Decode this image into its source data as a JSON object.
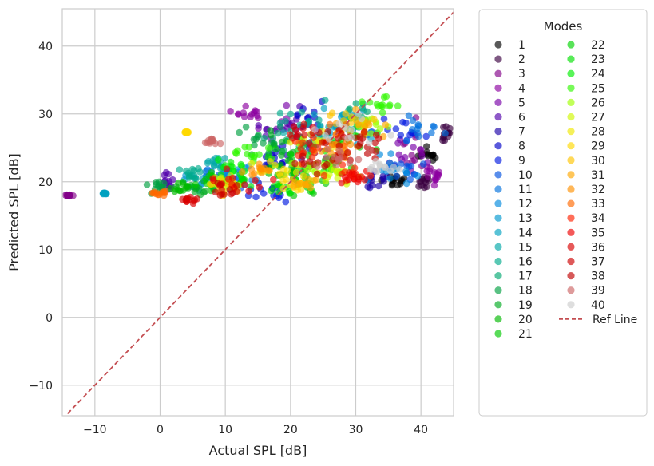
{
  "chart_data": {
    "type": "scatter",
    "title": "",
    "xlabel": "Actual SPL [dB]",
    "ylabel": "Predicted SPL [dB]",
    "xlim": [
      -15,
      45
    ],
    "ylim": [
      -14.5,
      45.5
    ],
    "xticks": [
      "−10",
      "0",
      "10",
      "20",
      "30",
      "40"
    ],
    "xtick_values": [
      -10,
      0,
      10,
      20,
      30,
      40
    ],
    "yticks": [
      "−10",
      "0",
      "10",
      "20",
      "30",
      "40"
    ],
    "ytick_values": [
      -10,
      0,
      10,
      20,
      30,
      40
    ],
    "grid": true,
    "legend": {
      "title": "Modes",
      "placement": "outside-right",
      "columns": 2
    },
    "reference_line": {
      "name": "Ref Line",
      "color": "#c44e52",
      "style": "dashed",
      "points": [
        [
          -15,
          -15
        ],
        [
          45,
          45
        ]
      ]
    },
    "series": [
      {
        "name": "1",
        "color": "#000000",
        "clusters": [
          {
            "cx": 36,
            "cy": 20,
            "sx": 1.8,
            "sy": 0.9
          },
          {
            "cx": 41,
            "cy": 24,
            "sx": 1.2,
            "sy": 1.2
          }
        ]
      },
      {
        "name": "2",
        "color": "#3a0040",
        "clusters": [
          {
            "cx": 44,
            "cy": 27,
            "sx": 0.8,
            "sy": 0.8
          },
          {
            "cx": 40,
            "cy": 20,
            "sx": 1.5,
            "sy": 1
          }
        ]
      },
      {
        "name": "3",
        "color": "#820088",
        "clusters": [
          {
            "cx": 39,
            "cy": 25,
            "sx": 2,
            "sy": 3
          },
          {
            "cx": -14,
            "cy": 18,
            "sx": 0.4,
            "sy": 0.1
          }
        ]
      },
      {
        "name": "4",
        "color": "#8c00a0",
        "clusters": [
          {
            "cx": 42,
            "cy": 21,
            "sx": 1.5,
            "sy": 1
          },
          {
            "cx": 14,
            "cy": 30,
            "sx": 3,
            "sy": 1
          }
        ]
      },
      {
        "name": "5",
        "color": "#7800a8",
        "clusters": [
          {
            "cx": 38,
            "cy": 24,
            "sx": 2.5,
            "sy": 3
          },
          {
            "cx": 20,
            "cy": 28,
            "sx": 4,
            "sy": 2
          }
        ]
      },
      {
        "name": "6",
        "color": "#5200aa",
        "clusters": [
          {
            "cx": 19,
            "cy": 28,
            "sx": 4,
            "sy": 2.5
          },
          {
            "cx": 1,
            "cy": 20,
            "sx": 1,
            "sy": 1
          }
        ]
      },
      {
        "name": "7",
        "color": "#1a00a8",
        "clusters": [
          {
            "cx": 20,
            "cy": 24,
            "sx": 5,
            "sy": 3
          },
          {
            "cx": 33,
            "cy": 20,
            "sx": 2,
            "sy": 1
          }
        ]
      },
      {
        "name": "8",
        "color": "#0000c8",
        "clusters": [
          {
            "cx": 18,
            "cy": 22,
            "sx": 4,
            "sy": 3
          },
          {
            "cx": 22,
            "cy": 29,
            "sx": 3,
            "sy": 2
          }
        ]
      },
      {
        "name": "9",
        "color": "#0018e0",
        "clusters": [
          {
            "cx": 36,
            "cy": 27,
            "sx": 4,
            "sy": 2
          },
          {
            "cx": 16,
            "cy": 18,
            "sx": 3,
            "sy": 1.5
          }
        ]
      },
      {
        "name": "10",
        "color": "#0050e0",
        "clusters": [
          {
            "cx": 38,
            "cy": 22,
            "sx": 3,
            "sy": 1.5
          },
          {
            "cx": 10,
            "cy": 20,
            "sx": 3,
            "sy": 1
          }
        ]
      },
      {
        "name": "11",
        "color": "#0070dd",
        "clusters": [
          {
            "cx": 40,
            "cy": 28,
            "sx": 3,
            "sy": 2
          },
          {
            "cx": 8,
            "cy": 21,
            "sx": 3,
            "sy": 1
          }
        ]
      },
      {
        "name": "12",
        "color": "#0088dd",
        "clusters": [
          {
            "cx": 35,
            "cy": 22,
            "sx": 3,
            "sy": 1.5
          },
          {
            "cx": 12,
            "cy": 21,
            "sx": 3,
            "sy": 1.5
          }
        ]
      },
      {
        "name": "13",
        "color": "#0098d0",
        "clusters": [
          {
            "cx": 30,
            "cy": 28,
            "sx": 4,
            "sy": 2
          },
          {
            "cx": 6,
            "cy": 20,
            "sx": 2,
            "sy": 1
          }
        ]
      },
      {
        "name": "14",
        "color": "#00a2c0",
        "clusters": [
          {
            "cx": 28,
            "cy": 29,
            "sx": 4,
            "sy": 2
          },
          {
            "cx": -8.5,
            "cy": 18.3,
            "sx": 0.3,
            "sy": 0.1
          }
        ]
      },
      {
        "name": "15",
        "color": "#00a8a8",
        "clusters": [
          {
            "cx": 24,
            "cy": 27,
            "sx": 4,
            "sy": 2
          },
          {
            "cx": 8,
            "cy": 23,
            "sx": 2,
            "sy": 1
          }
        ]
      },
      {
        "name": "16",
        "color": "#00aa8c",
        "clusters": [
          {
            "cx": 22,
            "cy": 29,
            "sx": 4,
            "sy": 2
          },
          {
            "cx": 5,
            "cy": 21,
            "sx": 2,
            "sy": 1
          }
        ]
      },
      {
        "name": "17",
        "color": "#00a870",
        "clusters": [
          {
            "cx": 20,
            "cy": 26,
            "sx": 4,
            "sy": 2
          },
          {
            "cx": 30,
            "cy": 30,
            "sx": 3,
            "sy": 1.5
          }
        ]
      },
      {
        "name": "18",
        "color": "#00a040",
        "clusters": [
          {
            "cx": 15,
            "cy": 26,
            "sx": 3,
            "sy": 1.5
          },
          {
            "cx": 0,
            "cy": 19.5,
            "sx": 1.5,
            "sy": 1
          }
        ]
      },
      {
        "name": "19",
        "color": "#00aa20",
        "clusters": [
          {
            "cx": 18,
            "cy": 25,
            "sx": 4,
            "sy": 2
          },
          {
            "cx": 5,
            "cy": 19,
            "sx": 2,
            "sy": 1
          }
        ]
      },
      {
        "name": "20",
        "color": "#00b800",
        "clusters": [
          {
            "cx": 20,
            "cy": 22,
            "sx": 4,
            "sy": 2
          },
          {
            "cx": 3,
            "cy": 19,
            "sx": 2,
            "sy": 1
          }
        ]
      },
      {
        "name": "21",
        "color": "#00c800",
        "clusters": [
          {
            "cx": 22,
            "cy": 20,
            "sx": 3,
            "sy": 1.5
          },
          {
            "cx": 8,
            "cy": 20,
            "sx": 2,
            "sy": 1
          }
        ]
      },
      {
        "name": "22",
        "color": "#00d400",
        "clusters": [
          {
            "cx": 23,
            "cy": 24,
            "sx": 4,
            "sy": 2
          },
          {
            "cx": 30,
            "cy": 27,
            "sx": 3,
            "sy": 2
          }
        ]
      },
      {
        "name": "23",
        "color": "#00e000",
        "clusters": [
          {
            "cx": 20,
            "cy": 19,
            "sx": 3,
            "sy": 1.2
          },
          {
            "cx": 12,
            "cy": 20,
            "sx": 2,
            "sy": 1
          }
        ]
      },
      {
        "name": "24",
        "color": "#00ee00",
        "clusters": [
          {
            "cx": 11,
            "cy": 22,
            "sx": 3,
            "sy": 1.5
          },
          {
            "cx": 26,
            "cy": 22,
            "sx": 3,
            "sy": 1.5
          }
        ]
      },
      {
        "name": "25",
        "color": "#30f800",
        "clusters": [
          {
            "cx": 14,
            "cy": 24,
            "sx": 3,
            "sy": 1.5
          },
          {
            "cx": 34,
            "cy": 31,
            "sx": 2,
            "sy": 1
          }
        ]
      },
      {
        "name": "26",
        "color": "#a0ff00",
        "clusters": [
          {
            "cx": 25,
            "cy": 22,
            "sx": 3,
            "sy": 1.5
          },
          {
            "cx": 32,
            "cy": 28,
            "sx": 2.5,
            "sy": 1.5
          }
        ]
      },
      {
        "name": "27",
        "color": "#d0f800",
        "clusters": [
          {
            "cx": 26,
            "cy": 21,
            "sx": 3,
            "sy": 1.5
          },
          {
            "cx": 10,
            "cy": 20,
            "sx": 2,
            "sy": 1
          }
        ]
      },
      {
        "name": "28",
        "color": "#f0e800",
        "clusters": [
          {
            "cx": 18,
            "cy": 22,
            "sx": 3,
            "sy": 1.5
          },
          {
            "cx": 24,
            "cy": 26,
            "sx": 3,
            "sy": 2
          }
        ]
      },
      {
        "name": "29",
        "color": "#ffd800",
        "clusters": [
          {
            "cx": 20,
            "cy": 20,
            "sx": 3,
            "sy": 1.5
          },
          {
            "cx": 4,
            "cy": 27.3,
            "sx": 0.3,
            "sy": 0.1
          }
        ]
      },
      {
        "name": "30",
        "color": "#ffc400",
        "clusters": [
          {
            "cx": 30,
            "cy": 29,
            "sx": 3,
            "sy": 1.5
          },
          {
            "cx": 10,
            "cy": 19,
            "sx": 2,
            "sy": 1
          }
        ]
      },
      {
        "name": "31",
        "color": "#ffa800",
        "clusters": [
          {
            "cx": 31,
            "cy": 28,
            "sx": 3,
            "sy": 1.5
          },
          {
            "cx": 22,
            "cy": 20,
            "sx": 3,
            "sy": 1
          }
        ]
      },
      {
        "name": "32",
        "color": "#ff9000",
        "clusters": [
          {
            "cx": 28,
            "cy": 24,
            "sx": 3,
            "sy": 1.5
          },
          {
            "cx": 15,
            "cy": 22,
            "sx": 2,
            "sy": 1
          }
        ]
      },
      {
        "name": "33",
        "color": "#ff6800",
        "clusters": [
          {
            "cx": 27,
            "cy": 27,
            "sx": 3,
            "sy": 2
          },
          {
            "cx": 0,
            "cy": 18.3,
            "sx": 1,
            "sy": 0.3
          }
        ]
      },
      {
        "name": "34",
        "color": "#ff2000",
        "clusters": [
          {
            "cx": 22,
            "cy": 25,
            "sx": 3,
            "sy": 2
          },
          {
            "cx": 29,
            "cy": 21,
            "sx": 2.5,
            "sy": 1
          }
        ]
      },
      {
        "name": "35",
        "color": "#ee0000",
        "clusters": [
          {
            "cx": 13,
            "cy": 20,
            "sx": 4,
            "sy": 1.2
          },
          {
            "cx": 30,
            "cy": 20.5,
            "sx": 2.5,
            "sy": 1
          }
        ]
      },
      {
        "name": "36",
        "color": "#d80000",
        "clusters": [
          {
            "cx": 22,
            "cy": 27,
            "sx": 3,
            "sy": 2
          },
          {
            "cx": 5,
            "cy": 17.3,
            "sx": 1.5,
            "sy": 0.4
          }
        ]
      },
      {
        "name": "37",
        "color": "#cc0000",
        "clusters": [
          {
            "cx": 28,
            "cy": 26,
            "sx": 4,
            "sy": 2
          },
          {
            "cx": 10,
            "cy": 19,
            "sx": 3,
            "sy": 1
          }
        ]
      },
      {
        "name": "38",
        "color": "#c00000",
        "clusters": [
          {
            "cx": 24,
            "cy": 23,
            "sx": 4,
            "sy": 2
          },
          {
            "cx": 32,
            "cy": 25,
            "sx": 2,
            "sy": 2
          }
        ]
      },
      {
        "name": "39",
        "color": "#cc6666",
        "clusters": [
          {
            "cx": 27,
            "cy": 24,
            "sx": 4,
            "sy": 2
          },
          {
            "cx": 8,
            "cy": 26,
            "sx": 1,
            "sy": 0.5
          }
        ]
      },
      {
        "name": "40",
        "color": "#cccccc",
        "clusters": [
          {
            "cx": 30,
            "cy": 27,
            "sx": 4,
            "sy": 2
          },
          {
            "cx": 34,
            "cy": 22,
            "sx": 2,
            "sy": 1
          }
        ]
      }
    ]
  }
}
